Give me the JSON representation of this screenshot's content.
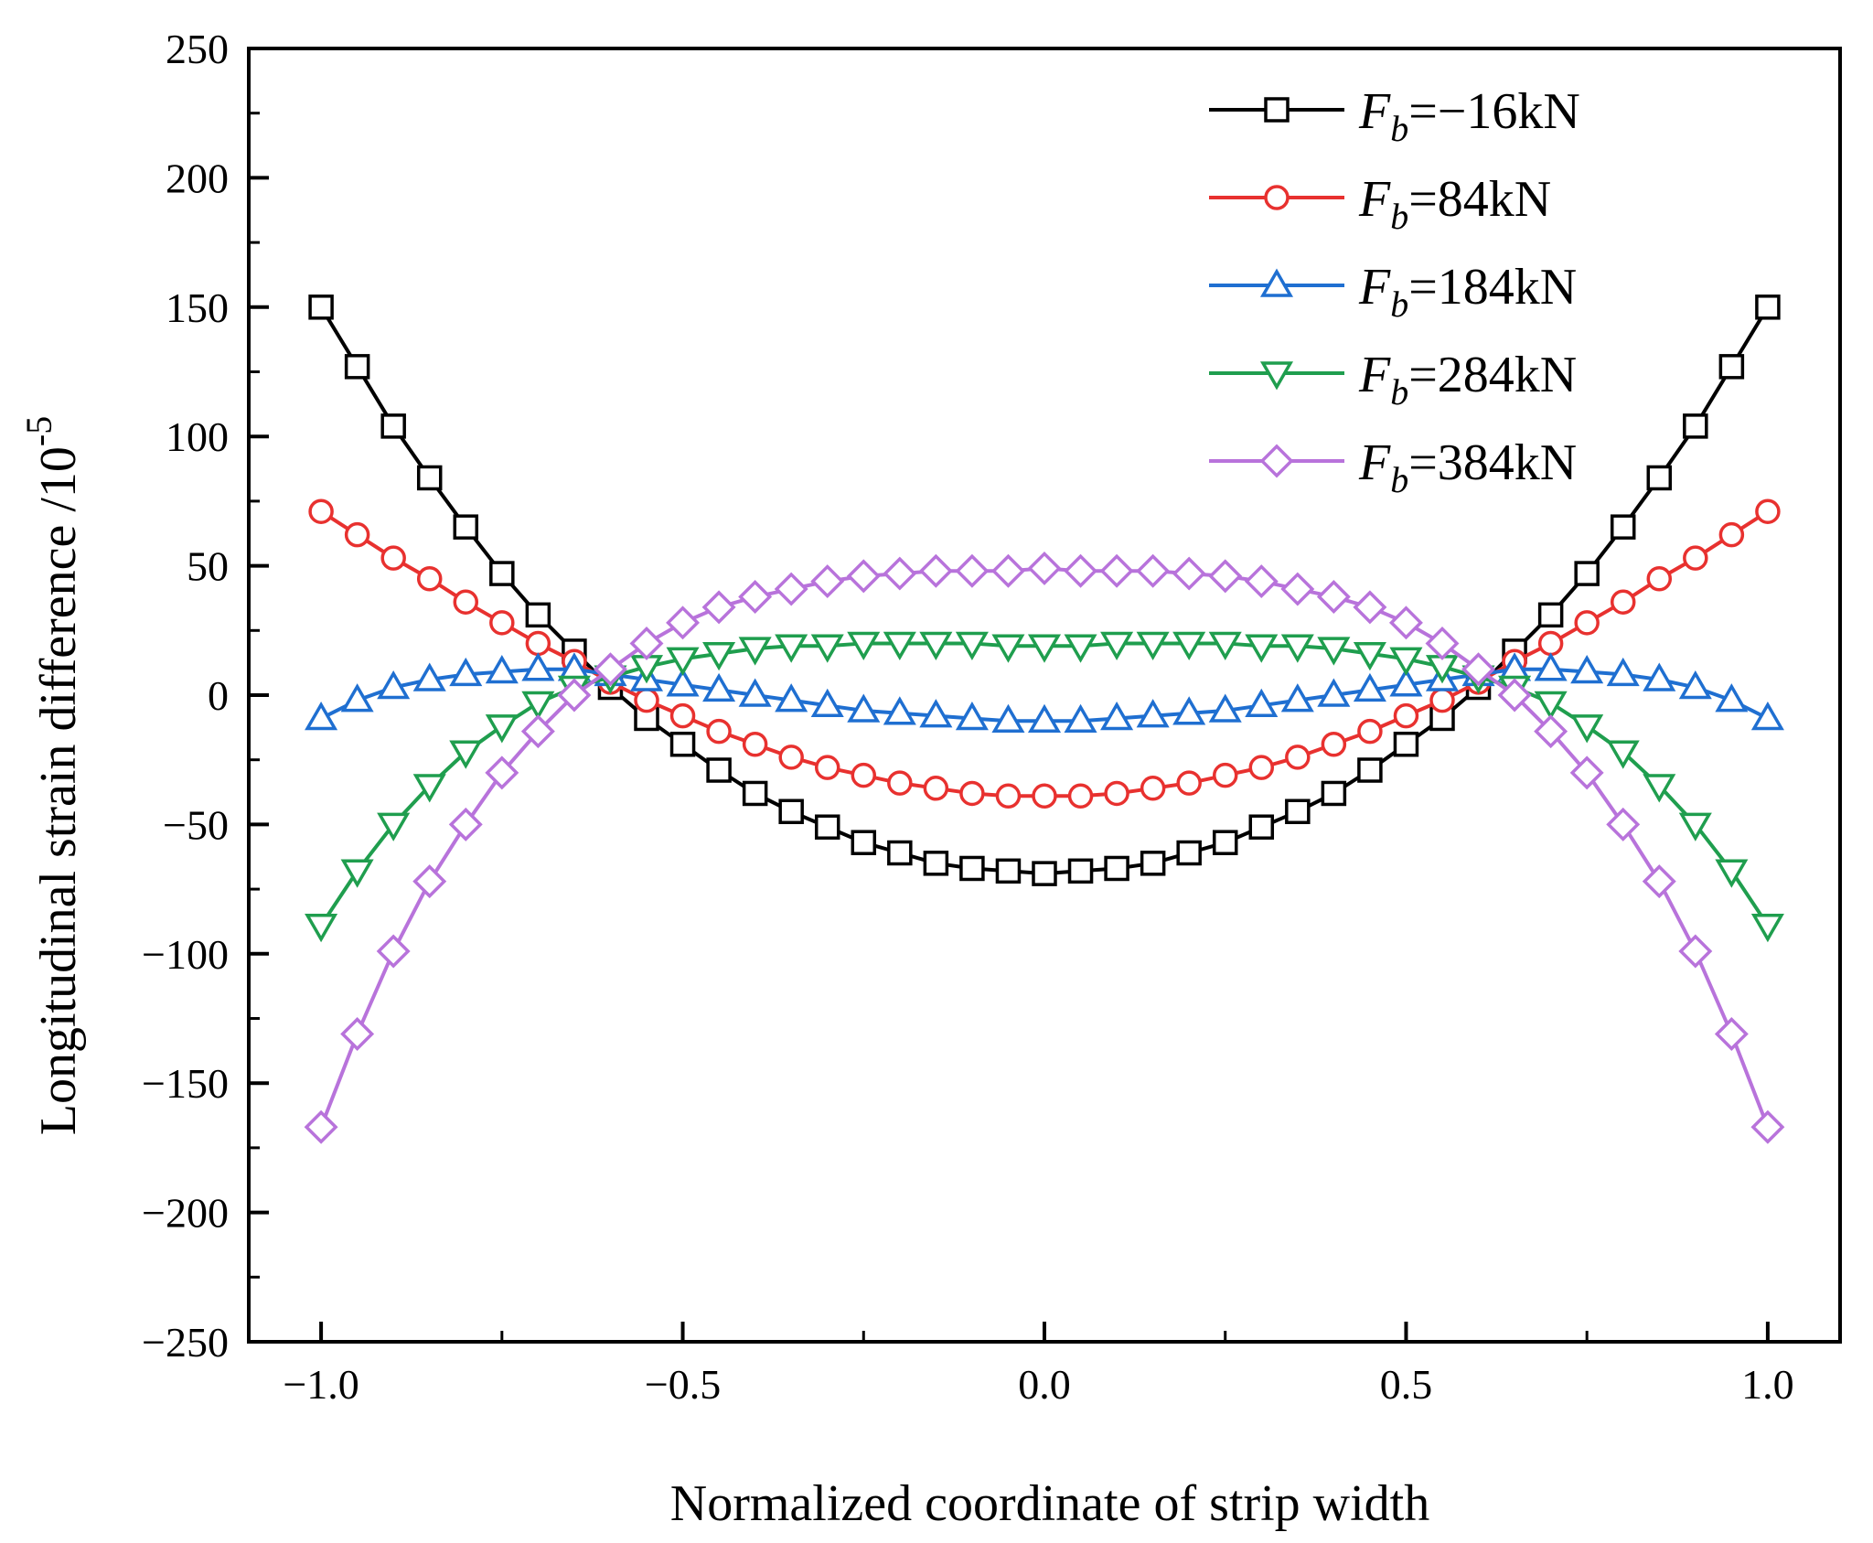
{
  "chart_data": {
    "type": "line",
    "title": "",
    "xlabel": "Normalized coordinate of strip width",
    "ylabel": "Longitudinal strain difference /10",
    "ylabel_exponent": "-5",
    "xlim": [
      -1.1,
      1.1
    ],
    "ylim": [
      -250,
      250
    ],
    "xticks": [
      -1.0,
      -0.5,
      0.0,
      0.5,
      1.0
    ],
    "xtick_labels": [
      "−1.0",
      "−0.5",
      "0.0",
      "0.5",
      "1.0"
    ],
    "yticks": [
      250,
      200,
      150,
      100,
      50,
      0,
      -50,
      -100,
      -150,
      -200,
      -250
    ],
    "ytick_labels": [
      "250",
      "200",
      "150",
      "100",
      "50",
      "0",
      "−50",
      "−100",
      "−150",
      "−200",
      "−250"
    ],
    "grid": false,
    "legend_position": "top-right",
    "x": [
      -1.0,
      -0.95,
      -0.9,
      -0.85,
      -0.8,
      -0.75,
      -0.7,
      -0.65,
      -0.6,
      -0.55,
      -0.5,
      -0.45,
      -0.4,
      -0.35,
      -0.3,
      -0.25,
      -0.2,
      -0.15,
      -0.1,
      -0.05,
      0.0,
      0.05,
      0.1,
      0.15,
      0.2,
      0.25,
      0.3,
      0.35,
      0.4,
      0.45,
      0.5,
      0.55,
      0.6,
      0.65,
      0.7,
      0.75,
      0.8,
      0.85,
      0.9,
      0.95,
      1.0
    ],
    "series": [
      {
        "name": "Fb=−16kN",
        "legend_prefix": "F",
        "legend_sub": "b",
        "legend_suffix": "=−16kN",
        "color": "#000000",
        "marker": "square",
        "values": [
          150,
          127,
          104,
          84,
          65,
          47,
          31,
          17,
          3,
          -9,
          -19,
          -29,
          -38,
          -45,
          -51,
          -57,
          -61,
          -65,
          -67,
          -68,
          -69,
          -68,
          -67,
          -65,
          -61,
          -57,
          -51,
          -45,
          -38,
          -29,
          -19,
          -9,
          3,
          17,
          31,
          47,
          65,
          84,
          104,
          127,
          150
        ]
      },
      {
        "name": "Fb=84kN",
        "legend_prefix": "F",
        "legend_sub": "b",
        "legend_suffix": "=84kN",
        "color": "#e8312f",
        "marker": "circle",
        "values": [
          71,
          62,
          53,
          45,
          36,
          28,
          20,
          13,
          5,
          -2,
          -8,
          -14,
          -19,
          -24,
          -28,
          -31,
          -34,
          -36,
          -38,
          -39,
          -39,
          -39,
          -38,
          -36,
          -34,
          -31,
          -28,
          -24,
          -19,
          -14,
          -8,
          -2,
          5,
          13,
          20,
          28,
          36,
          45,
          53,
          62,
          71
        ]
      },
      {
        "name": "Fb=184kN",
        "legend_prefix": "F",
        "legend_sub": "b",
        "legend_suffix": "=184kN",
        "color": "#1f6fd1",
        "marker": "triangle-up",
        "values": [
          -9,
          -2,
          3,
          6,
          8,
          9,
          10,
          10,
          8,
          6,
          4,
          2,
          0,
          -2,
          -4,
          -6,
          -7,
          -8,
          -9,
          -10,
          -10,
          -10,
          -9,
          -8,
          -7,
          -6,
          -4,
          -2,
          0,
          2,
          4,
          6,
          8,
          10,
          10,
          9,
          8,
          6,
          3,
          -2,
          -9
        ]
      },
      {
        "name": "Fb=284kN",
        "legend_prefix": "F",
        "legend_sub": "b",
        "legend_suffix": "=284kN",
        "color": "#1f9e4e",
        "marker": "triangle-down",
        "values": [
          -89,
          -68,
          -50,
          -35,
          -22,
          -12,
          -3,
          3,
          7,
          11,
          14,
          16,
          18,
          19,
          19,
          20,
          20,
          20,
          20,
          19,
          19,
          19,
          20,
          20,
          20,
          20,
          19,
          19,
          18,
          16,
          14,
          11,
          7,
          3,
          -3,
          -12,
          -22,
          -35,
          -50,
          -68,
          -89
        ]
      },
      {
        "name": "Fb=384kN",
        "legend_prefix": "F",
        "legend_sub": "b",
        "legend_suffix": "=384kN",
        "color": "#b873db",
        "marker": "diamond",
        "values": [
          -167,
          -131,
          -99,
          -72,
          -50,
          -30,
          -14,
          0,
          10,
          20,
          28,
          34,
          38,
          41,
          44,
          46,
          47,
          48,
          48,
          48,
          49,
          48,
          48,
          48,
          47,
          46,
          44,
          41,
          38,
          34,
          28,
          20,
          10,
          0,
          -14,
          -30,
          -50,
          -72,
          -99,
          -131,
          -167
        ]
      }
    ]
  }
}
